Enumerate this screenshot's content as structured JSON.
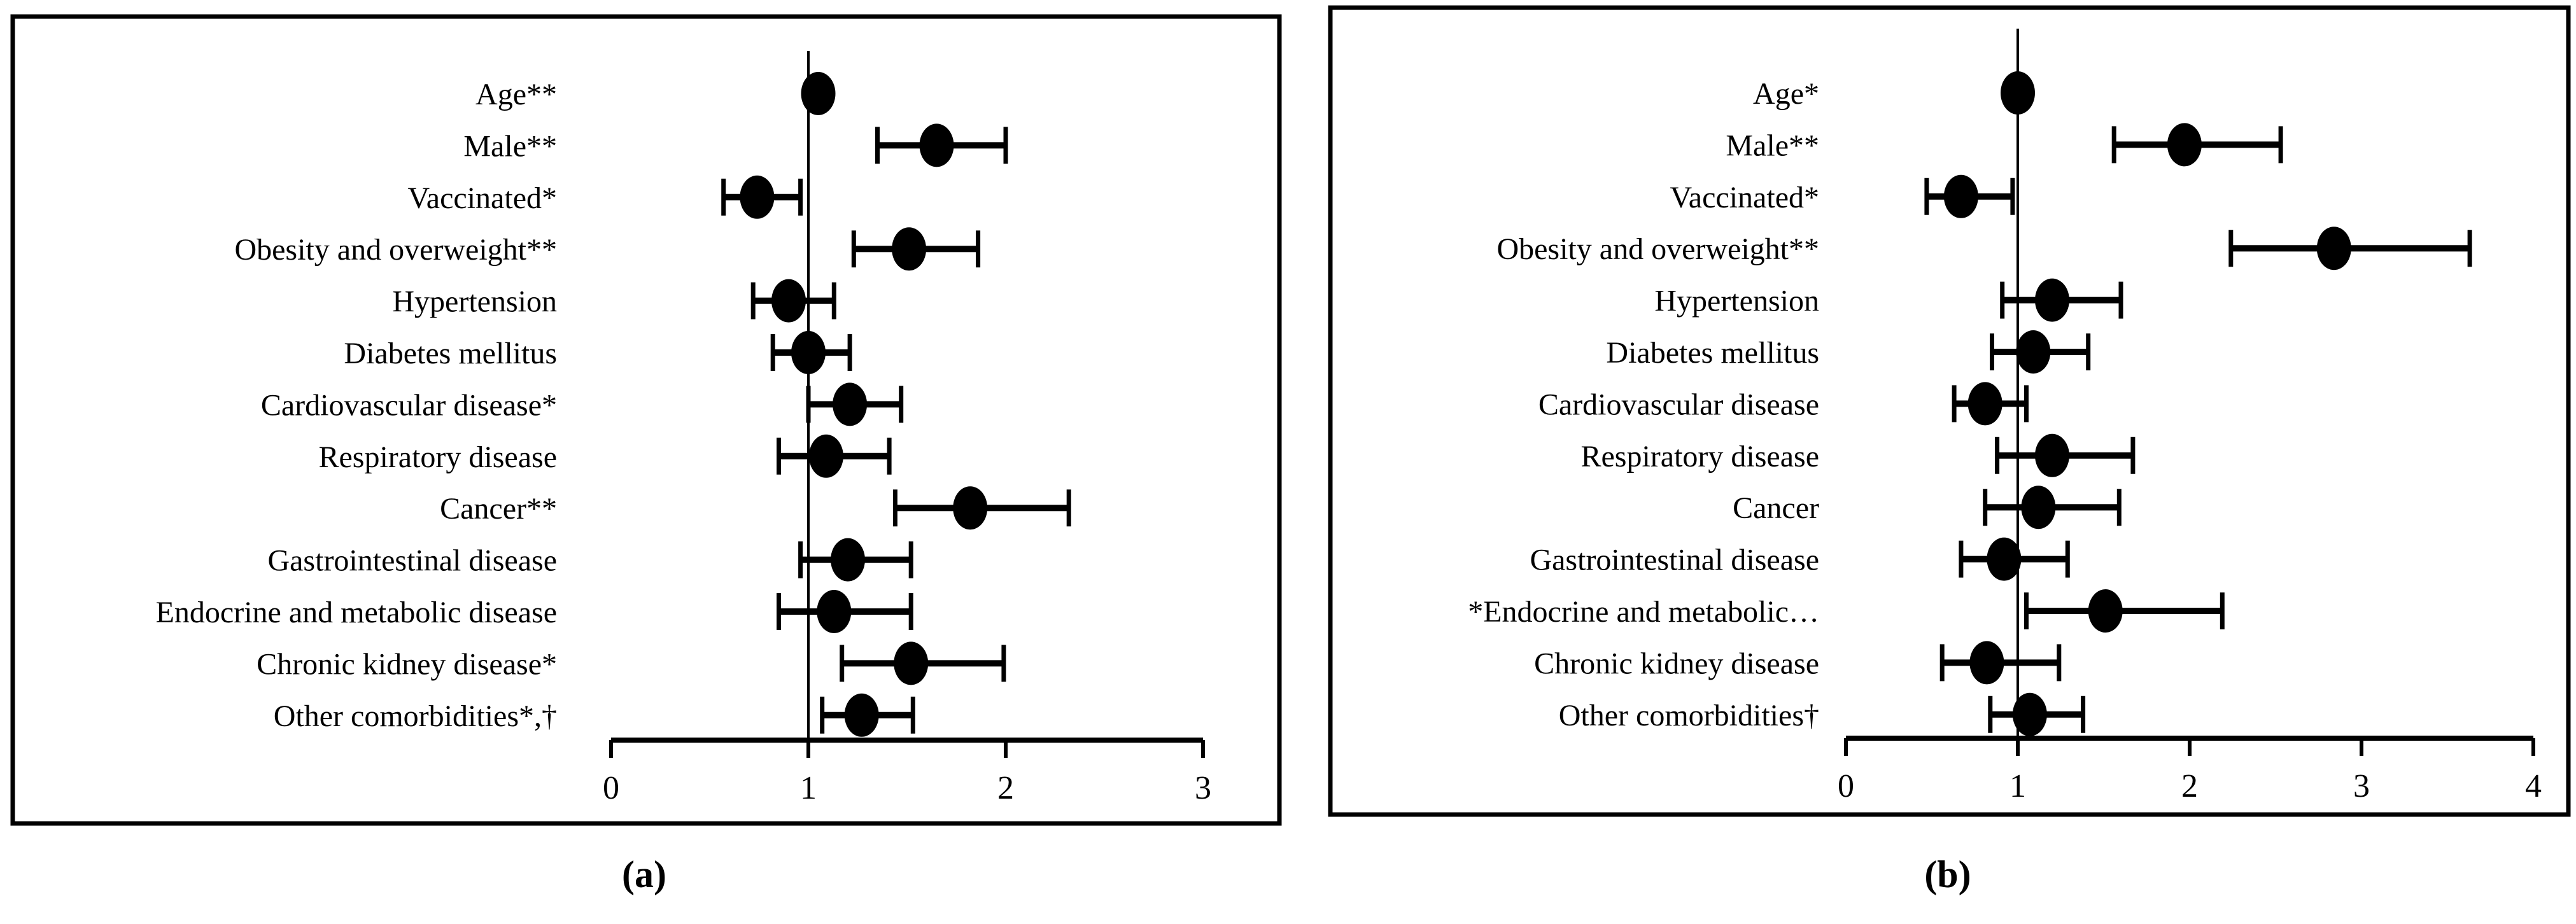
{
  "figure": {
    "captions": [
      "(a)",
      "(b)"
    ],
    "ink_color": "#000000",
    "background_color": "#ffffff"
  },
  "chart_data": [
    {
      "type": "scatter",
      "subtype": "forest_plot",
      "panel": "a",
      "caption": "(a)",
      "xlabel": "",
      "ylabel": "",
      "xlim": [
        0,
        3
      ],
      "xticks": [
        0,
        1,
        2,
        3
      ],
      "reference_line_x": 1,
      "grid": false,
      "legend": "none",
      "marker": "filled-black-ellipse",
      "rows": [
        {
          "label": "Age**",
          "or": 1.05,
          "lo": 1.02,
          "hi": 1.08
        },
        {
          "label": "Male**",
          "or": 1.65,
          "lo": 1.35,
          "hi": 2.0
        },
        {
          "label": "Vaccinated*",
          "or": 0.74,
          "lo": 0.57,
          "hi": 0.96
        },
        {
          "label": "Obesity and overweight**",
          "or": 1.51,
          "lo": 1.23,
          "hi": 1.86
        },
        {
          "label": "Hypertension",
          "or": 0.9,
          "lo": 0.72,
          "hi": 1.13
        },
        {
          "label": "Diabetes mellitus",
          "or": 1.0,
          "lo": 0.82,
          "hi": 1.21
        },
        {
          "label": "Cardiovascular disease*",
          "or": 1.21,
          "lo": 1.0,
          "hi": 1.47
        },
        {
          "label": "Respiratory disease",
          "or": 1.09,
          "lo": 0.85,
          "hi": 1.41
        },
        {
          "label": "Cancer**",
          "or": 1.82,
          "lo": 1.44,
          "hi": 2.32
        },
        {
          "label": "Gastrointestinal disease",
          "or": 1.2,
          "lo": 0.96,
          "hi": 1.52
        },
        {
          "label": "Endocrine and metabolic disease",
          "or": 1.13,
          "lo": 0.85,
          "hi": 1.52
        },
        {
          "label": "Chronic kidney disease*",
          "or": 1.52,
          "lo": 1.17,
          "hi": 1.99
        },
        {
          "label": "Other comorbidities*,†",
          "or": 1.27,
          "lo": 1.07,
          "hi": 1.53
        }
      ]
    },
    {
      "type": "scatter",
      "subtype": "forest_plot",
      "panel": "b",
      "caption": "(b)",
      "xlabel": "",
      "ylabel": "",
      "xlim": [
        0,
        4
      ],
      "xticks": [
        0,
        1,
        2,
        3,
        4
      ],
      "reference_line_x": 1,
      "grid": false,
      "legend": "none",
      "marker": "filled-black-ellipse",
      "rows": [
        {
          "label": "Age*",
          "or": 1.0,
          "lo": 0.98,
          "hi": 1.03
        },
        {
          "label": "Male**",
          "or": 1.97,
          "lo": 1.56,
          "hi": 2.53
        },
        {
          "label": "Vaccinated*",
          "or": 0.67,
          "lo": 0.47,
          "hi": 0.97
        },
        {
          "label": "Obesity and overweight**",
          "or": 2.84,
          "lo": 2.24,
          "hi": 3.63
        },
        {
          "label": "Hypertension",
          "or": 1.2,
          "lo": 0.91,
          "hi": 1.6
        },
        {
          "label": "Diabetes mellitus",
          "or": 1.09,
          "lo": 0.85,
          "hi": 1.41
        },
        {
          "label": "Cardiovascular disease",
          "or": 0.81,
          "lo": 0.63,
          "hi": 1.05
        },
        {
          "label": "Respiratory disease",
          "or": 1.2,
          "lo": 0.88,
          "hi": 1.67
        },
        {
          "label": "Cancer",
          "or": 1.12,
          "lo": 0.81,
          "hi": 1.59
        },
        {
          "label": "Gastrointestinal disease",
          "or": 0.92,
          "lo": 0.67,
          "hi": 1.29
        },
        {
          "label": "*Endocrine and metabolic…",
          "or": 1.51,
          "lo": 1.05,
          "hi": 2.19
        },
        {
          "label": "Chronic kidney disease",
          "or": 0.82,
          "lo": 0.56,
          "hi": 1.24
        },
        {
          "label": "Other comorbidities†",
          "or": 1.07,
          "lo": 0.84,
          "hi": 1.38
        }
      ]
    }
  ]
}
